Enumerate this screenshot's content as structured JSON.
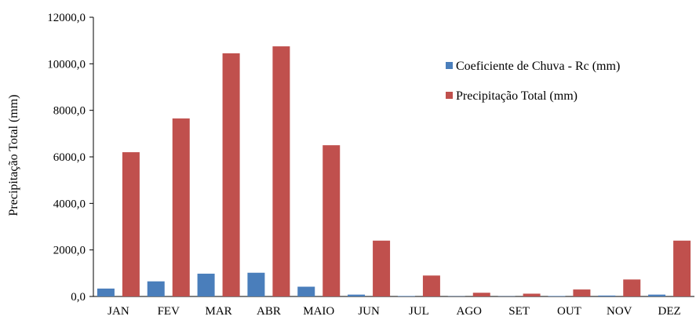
{
  "chart_data": {
    "type": "bar",
    "title": "",
    "xlabel": "",
    "ylabel": "Precipitação Total (mm)",
    "ylim": [
      0,
      12000
    ],
    "yticks": [
      "0,0",
      "2000,0",
      "4000,0",
      "6000,0",
      "8000,0",
      "10000,0",
      "12000,0"
    ],
    "ytick_values": [
      0,
      2000,
      4000,
      6000,
      8000,
      10000,
      12000
    ],
    "categories": [
      "JAN",
      "FEV",
      "MAR",
      "ABR",
      "MAIO",
      "JUN",
      "JUL",
      "AGO",
      "SET",
      "OUT",
      "NOV",
      "DEZ"
    ],
    "series": [
      {
        "name": "Coeficiente de Chuva - Rc (mm)",
        "color": "#4a7ebb",
        "values": [
          340,
          650,
          980,
          1020,
          420,
          80,
          20,
          10,
          10,
          20,
          40,
          80
        ]
      },
      {
        "name": "Precipitação Total (mm)",
        "color": "#c0504d",
        "values": [
          6200,
          7650,
          10450,
          10750,
          6500,
          2400,
          900,
          160,
          120,
          300,
          730,
          2400
        ]
      }
    ],
    "grid": false,
    "legend_position": "top-right"
  }
}
